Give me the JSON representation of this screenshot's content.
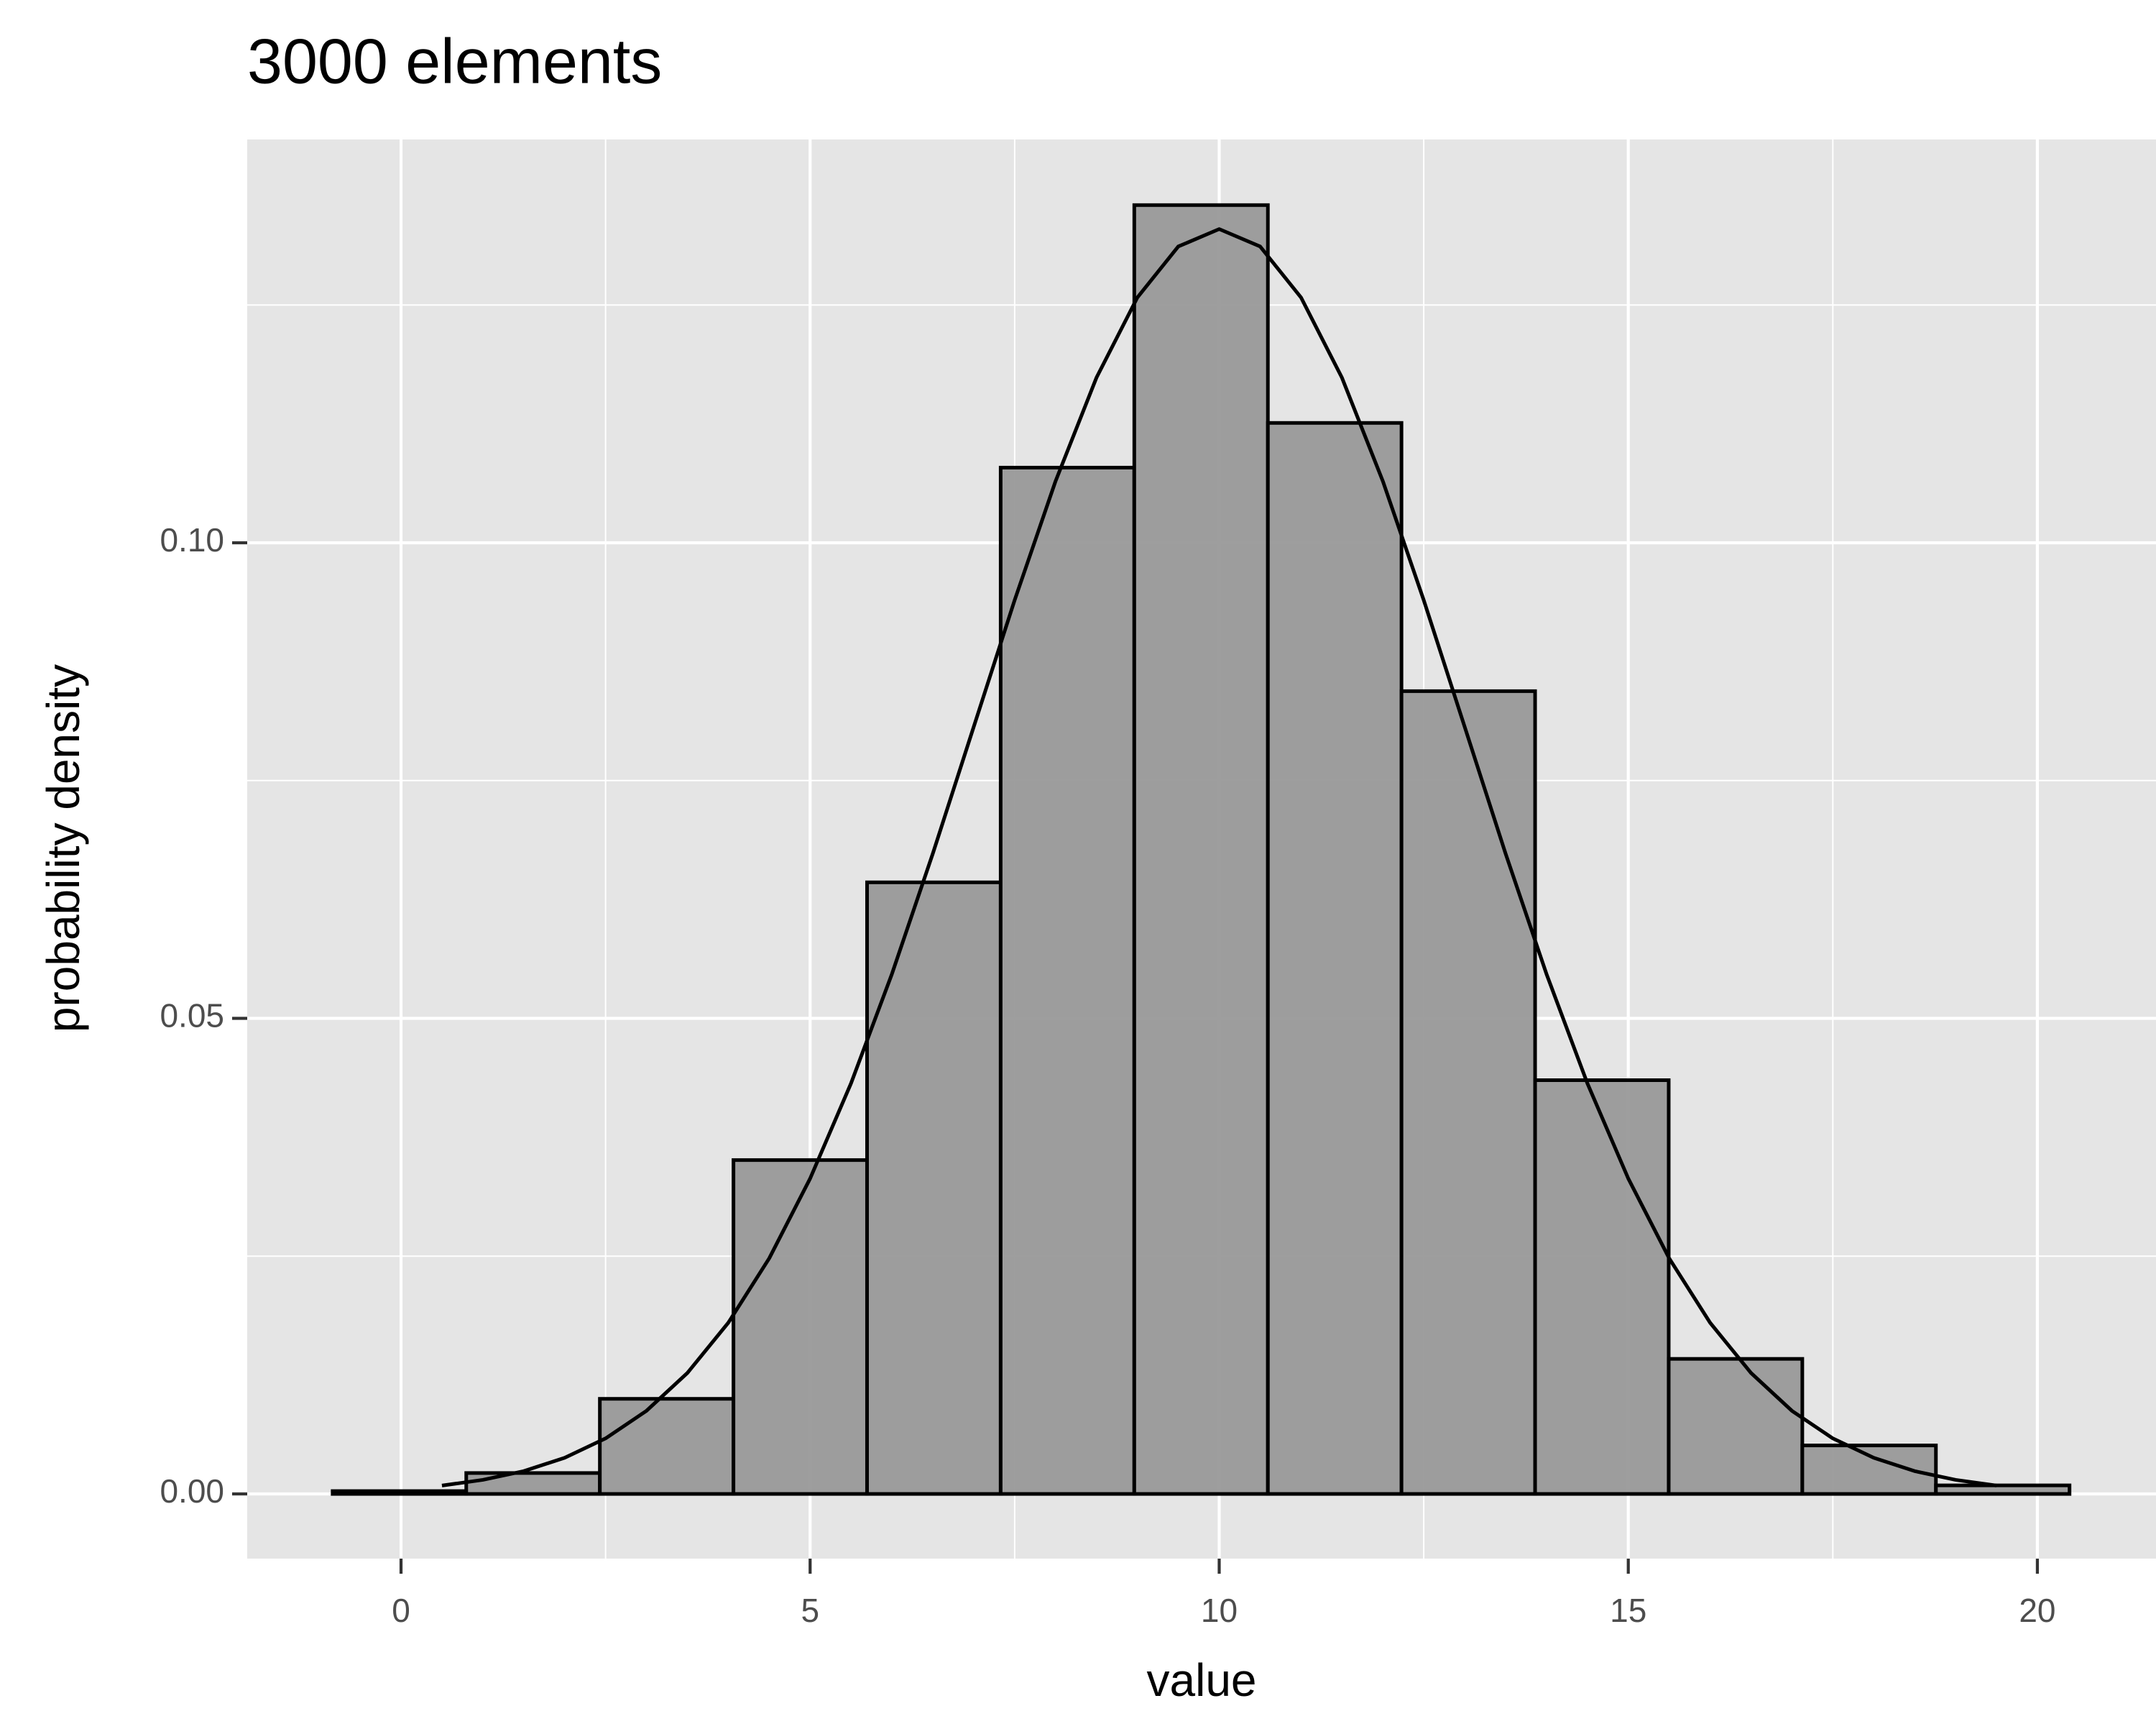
{
  "chart_data": {
    "type": "histogram",
    "title": "3000 elements",
    "x_label": "value",
    "y_label": "probability density",
    "bins": [
      -0.836,
      0.797,
      2.43,
      4.063,
      5.696,
      7.329,
      8.962,
      10.595,
      12.228,
      13.861,
      15.494,
      17.127,
      18.76,
      20.393
    ],
    "values": [
      0.0003,
      0.0022,
      0.01,
      0.0351,
      0.0643,
      0.1079,
      0.1355,
      0.1126,
      0.0844,
      0.0435,
      0.0142,
      0.0051,
      0.0009
    ],
    "color": "#999999",
    "edge_color": "#000000",
    "curve": {
      "type": "line",
      "color": "#000000",
      "x": [
        0.5,
        1,
        1.5,
        2,
        2.5,
        3,
        3.5,
        4,
        4.5,
        5,
        5.5,
        6,
        6.5,
        7,
        7.5,
        8,
        8.5,
        9,
        9.5,
        10,
        10.5,
        11,
        11.5,
        12,
        12.5,
        13,
        13.5,
        14,
        14.5,
        15,
        15.5,
        16,
        16.5,
        17,
        17.5,
        18,
        18.5,
        19,
        19.5
      ],
      "values": [
        0.00088,
        0.00148,
        0.0024,
        0.0038,
        0.00584,
        0.00874,
        0.01272,
        0.018,
        0.02477,
        0.03316,
        0.04317,
        0.05467,
        0.06733,
        0.08066,
        0.09397,
        0.10648,
        0.11736,
        0.12579,
        0.13115,
        0.13298,
        0.13115,
        0.12579,
        0.11736,
        0.10648,
        0.09397,
        0.08066,
        0.06733,
        0.05467,
        0.04317,
        0.03316,
        0.02477,
        0.018,
        0.01272,
        0.00874,
        0.00584,
        0.0038,
        0.0024,
        0.00148,
        0.00088
      ]
    },
    "xlim": [
      -1.88,
      21.45
    ],
    "ylim": [
      -0.0068,
      0.1424
    ],
    "xticks": [
      0,
      5,
      10,
      15,
      20
    ],
    "yticks": [
      {
        "value": 0,
        "label": "0.00"
      },
      {
        "value": 0.05,
        "label": "0.05"
      },
      {
        "value": 0.1,
        "label": "0.10"
      }
    ],
    "x_minor_ticks": [
      2.5,
      7.5,
      12.5,
      17.5
    ],
    "y_minor_ticks": [
      0.025,
      0.075,
      0.125
    ],
    "grid": true,
    "panel_color": "#e5e5e5"
  }
}
